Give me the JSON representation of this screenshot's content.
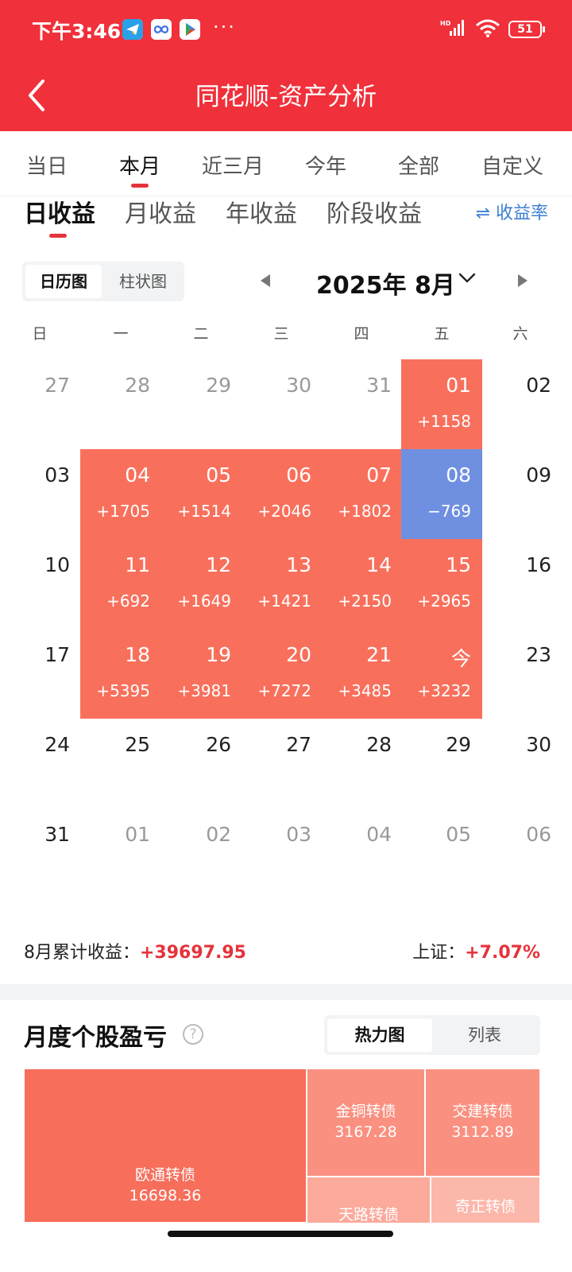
{
  "status_bar": {
    "time": "下午3:46",
    "more": "···",
    "battery": "51",
    "signal_badge": "HD"
  },
  "header": {
    "title": "同花顺-资产分析"
  },
  "period_tabs": [
    "当日",
    "本月",
    "近三月",
    "今年",
    "全部",
    "自定义"
  ],
  "profit_tabs": [
    "日收益",
    "月收益",
    "年收益",
    "阶段收益"
  ],
  "rate_link": "⇌ 收益率",
  "view_toggle": {
    "calendar": "日历图",
    "bar": "柱状图"
  },
  "month_label": "2025年 8月",
  "weekdays": [
    "日",
    "一",
    "二",
    "三",
    "四",
    "五",
    "六"
  ],
  "calendar": [
    [
      {
        "d": "27",
        "muted": true
      },
      {
        "d": "28",
        "muted": true
      },
      {
        "d": "29",
        "muted": true
      },
      {
        "d": "30",
        "muted": true
      },
      {
        "d": "31",
        "muted": true
      },
      {
        "d": "01",
        "v": "+1158",
        "s": "up"
      },
      {
        "d": "02"
      }
    ],
    [
      {
        "d": "03"
      },
      {
        "d": "04",
        "v": "+1705",
        "s": "up"
      },
      {
        "d": "05",
        "v": "+1514",
        "s": "up"
      },
      {
        "d": "06",
        "v": "+2046",
        "s": "up"
      },
      {
        "d": "07",
        "v": "+1802",
        "s": "up"
      },
      {
        "d": "08",
        "v": "−769",
        "s": "down"
      },
      {
        "d": "09"
      }
    ],
    [
      {
        "d": "10"
      },
      {
        "d": "11",
        "v": "+692",
        "s": "up"
      },
      {
        "d": "12",
        "v": "+1649",
        "s": "up"
      },
      {
        "d": "13",
        "v": "+1421",
        "s": "up"
      },
      {
        "d": "14",
        "v": "+2150",
        "s": "up"
      },
      {
        "d": "15",
        "v": "+2965",
        "s": "up"
      },
      {
        "d": "16"
      }
    ],
    [
      {
        "d": "17"
      },
      {
        "d": "18",
        "v": "+5395",
        "s": "up"
      },
      {
        "d": "19",
        "v": "+3981",
        "s": "up"
      },
      {
        "d": "20",
        "v": "+7272",
        "s": "up"
      },
      {
        "d": "21",
        "v": "+3485",
        "s": "up"
      },
      {
        "d": "今",
        "v": "+3232",
        "s": "up"
      },
      {
        "d": "23"
      }
    ],
    [
      {
        "d": "24"
      },
      {
        "d": "25"
      },
      {
        "d": "26"
      },
      {
        "d": "27"
      },
      {
        "d": "28"
      },
      {
        "d": "29"
      },
      {
        "d": "30"
      }
    ],
    [
      {
        "d": "31"
      },
      {
        "d": "01",
        "muted": true
      },
      {
        "d": "02",
        "muted": true
      },
      {
        "d": "03",
        "muted": true
      },
      {
        "d": "04",
        "muted": true
      },
      {
        "d": "05",
        "muted": true
      },
      {
        "d": "06",
        "muted": true
      }
    ]
  ],
  "summary": {
    "label": "8月累计收益：",
    "value": "+39697.95",
    "index_label": "上证：",
    "index_value": "+7.07%"
  },
  "monthly": {
    "title": "月度个股盈亏",
    "help": "?",
    "toggle": {
      "heatmap": "热力图",
      "list": "列表"
    },
    "stocks": [
      {
        "name": "欧通转债",
        "value": "16698.36"
      },
      {
        "name": "金铜转债",
        "value": "3167.28"
      },
      {
        "name": "交建转债",
        "value": "3112.89"
      },
      {
        "name": "天路转债",
        "value": ""
      },
      {
        "name": "奇正转债",
        "value": ""
      }
    ]
  },
  "colors": {
    "brand": "#f0303a",
    "up": "#f8705c",
    "down": "#6f8fe0",
    "accent_text": "#e5333b",
    "link": "#3d7fd0"
  }
}
